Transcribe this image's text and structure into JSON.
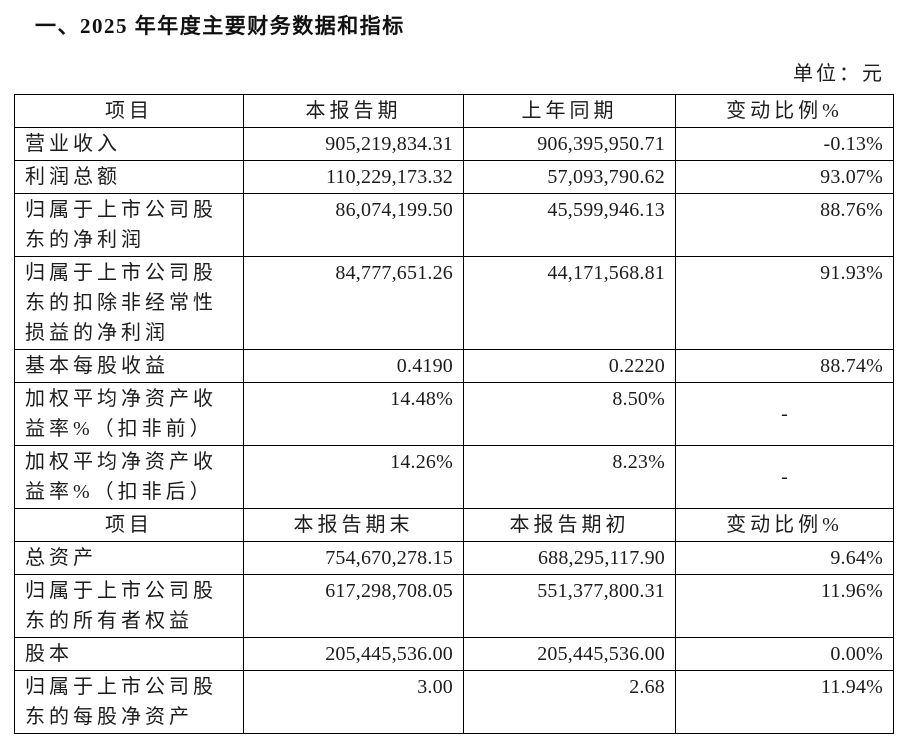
{
  "page": {
    "title": "一、2025 年年度主要财务数据和指标",
    "unit_label": "单位：元"
  },
  "table": {
    "sections": [
      {
        "headers": [
          "项目",
          "本报告期",
          "上年同期",
          "变动比例%"
        ],
        "rows": [
          {
            "item": "营业收入",
            "current": "905,219,834.31",
            "prior": "906,395,950.71",
            "change": "-0.13%"
          },
          {
            "item": "利润总额",
            "current": "110,229,173.32",
            "prior": "57,093,790.62",
            "change": "93.07%"
          },
          {
            "item": "归属于上市公司股东的净利润",
            "current": "86,074,199.50",
            "prior": "45,599,946.13",
            "change": "88.76%"
          },
          {
            "item": "归属于上市公司股东的扣除非经常性损益的净利润",
            "current": "84,777,651.26",
            "prior": "44,171,568.81",
            "change": "91.93%"
          },
          {
            "item": "基本每股收益",
            "current": "0.4190",
            "prior": "0.2220",
            "change": "88.74%"
          },
          {
            "item": "加权平均净资产收益率%（扣非前）",
            "current": "14.48%",
            "prior": "8.50%",
            "change": "-"
          },
          {
            "item": "加权平均净资产收益率%（扣非后）",
            "current": "14.26%",
            "prior": "8.23%",
            "change": "-"
          }
        ]
      },
      {
        "headers": [
          "项目",
          "本报告期末",
          "本报告期初",
          "变动比例%"
        ],
        "rows": [
          {
            "item": "总资产",
            "current": "754,670,278.15",
            "prior": "688,295,117.90",
            "change": "9.64%"
          },
          {
            "item": "归属于上市公司股东的所有者权益",
            "current": "617,298,708.05",
            "prior": "551,377,800.31",
            "change": "11.96%"
          },
          {
            "item": "股本",
            "current": "205,445,536.00",
            "prior": "205,445,536.00",
            "change": "0.00%"
          },
          {
            "item": "归属于上市公司股东的每股净资产",
            "current": "3.00",
            "prior": "2.68",
            "change": "11.94%"
          }
        ]
      }
    ]
  }
}
